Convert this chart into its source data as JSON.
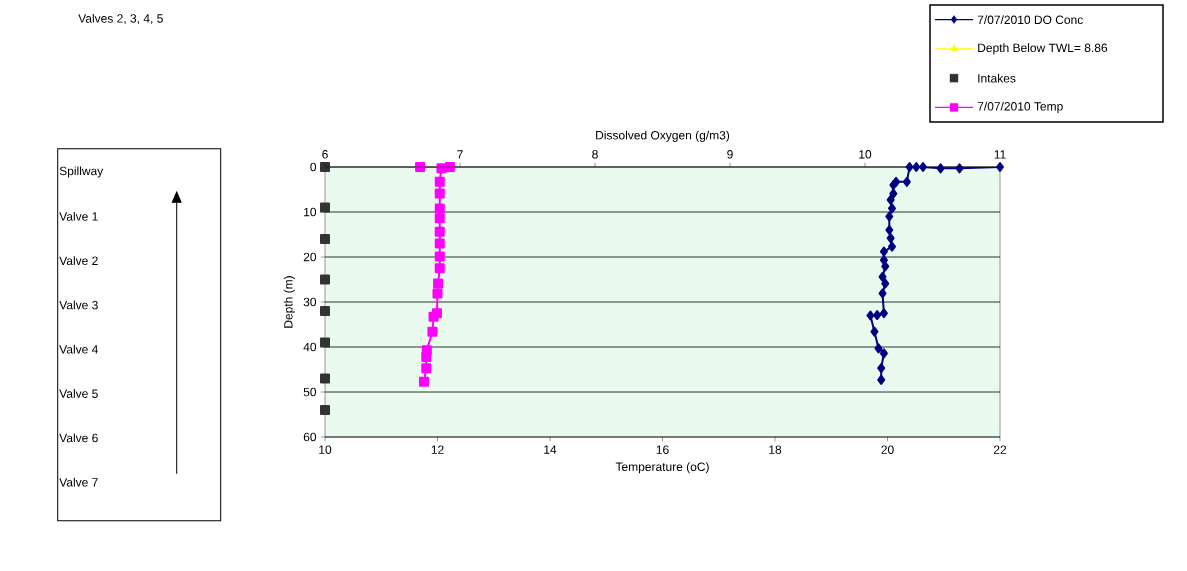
{
  "chart_data": {
    "type": "line",
    "title": "Valves 2, 3, 4, 5",
    "xlabel": "Temperature (oC)",
    "x2label": "Dissolved Oxygen (g/m3)",
    "ylabel": "Depth (m)",
    "xlim": [
      10,
      22
    ],
    "xticks": [
      10,
      12,
      14,
      16,
      18,
      20,
      22
    ],
    "x2lim": [
      6,
      11
    ],
    "x2ticks": [
      6,
      7,
      8,
      9,
      10,
      11
    ],
    "ylim": [
      60,
      0
    ],
    "yticks": [
      0,
      10,
      20,
      30,
      40,
      50,
      60
    ],
    "grid": "y",
    "legend": "top right",
    "series": [
      {
        "name": "7/07/2010 DO Conc",
        "color": "#000080",
        "marker": "diamond",
        "axis": "x2",
        "x": [
          11.0,
          10.7,
          10.56,
          10.43,
          10.38,
          10.33,
          10.31,
          10.23,
          10.21,
          10.21,
          10.19,
          10.2,
          10.18,
          10.18,
          10.19,
          10.2,
          10.14,
          10.14,
          10.15,
          10.13,
          10.15,
          10.13,
          10.14,
          10.09,
          10.04,
          10.07,
          10.1,
          10.14,
          10.12,
          10.12
        ],
        "values": [
          0,
          0.3,
          0.3,
          0,
          0,
          0,
          3.3,
          3.3,
          4,
          5.9,
          7.3,
          9.2,
          11,
          14,
          15.8,
          17.7,
          18.8,
          20.7,
          22.1,
          24.4,
          25.9,
          28.1,
          32.5,
          32.9,
          33,
          36.6,
          40.3,
          41.4,
          44.7,
          47.3
        ]
      },
      {
        "name": "Depth Below TWL= 8.86",
        "color": "#ffff00",
        "marker": "triangle",
        "x": [
          null
        ],
        "values": [
          null
        ]
      },
      {
        "name": "Intakes",
        "type": "scatter",
        "color": "#333333",
        "marker": "square",
        "x": [
          10,
          10,
          10,
          10,
          10,
          10,
          10,
          10
        ],
        "values": [
          0,
          9,
          16,
          25,
          32,
          39,
          47,
          54
        ]
      },
      {
        "name": "7/07/2010 Temp",
        "color": "#ff00ff",
        "marker": "square",
        "x": [
          11.69,
          12.22,
          12.07,
          12.04,
          12.04,
          12.04,
          12.04,
          12.04,
          12.04,
          12.04,
          12.04,
          12.01,
          12.0,
          11.99,
          11.93,
          11.91,
          11.81,
          11.8,
          11.8,
          11.76
        ],
        "values": [
          0,
          0,
          0.3,
          3.3,
          5.9,
          9.2,
          11.4,
          14.4,
          17,
          19.9,
          22.5,
          25.9,
          28.1,
          32.5,
          33.3,
          36.6,
          40.7,
          42.2,
          44.7,
          47.7
        ]
      }
    ],
    "annotations": [
      "Spillway",
      "Valve 1",
      "Valve 2",
      "Valve 3",
      "Valve 4",
      "Valve 5",
      "Valve 6",
      "Valve 7"
    ]
  }
}
